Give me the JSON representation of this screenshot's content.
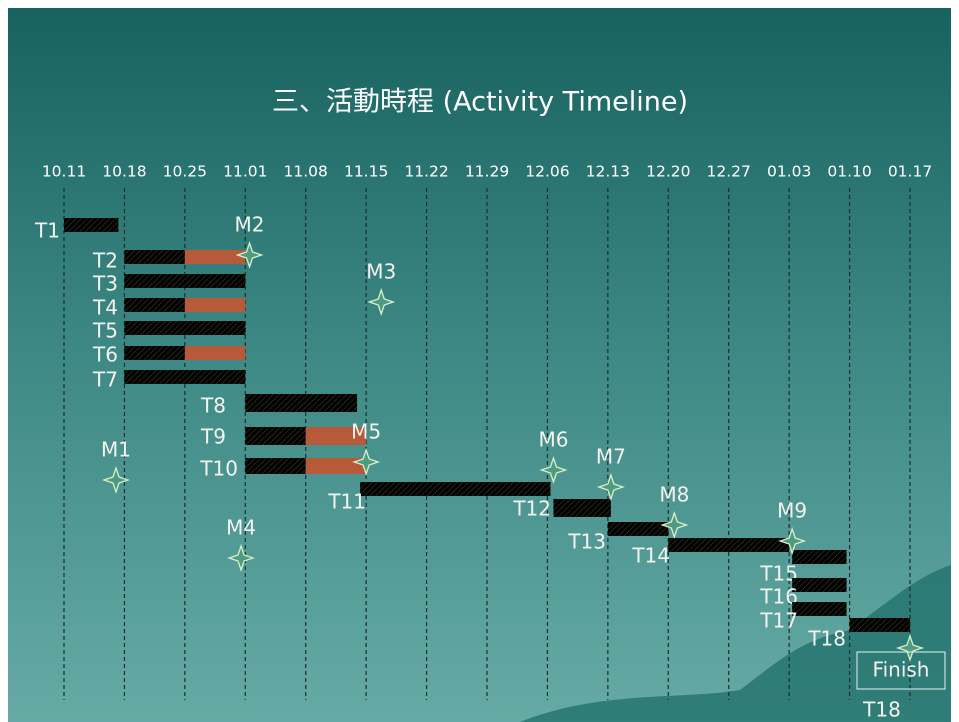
{
  "title": "三、活動時程 (Activity Timeline)",
  "timeline": {
    "dates": [
      "10.11",
      "10.18",
      "10.25",
      "11.01",
      "11.08",
      "11.15",
      "11.22",
      "11.29",
      "12.06",
      "12.13",
      "12.20",
      "12.27",
      "01.03",
      "01.10",
      "01.17"
    ],
    "colors": {
      "planned": "#c9c47c",
      "critical": "#b65a3a",
      "milestone": "#d8f0c8"
    },
    "tasks": [
      {
        "label": "T1",
        "segments": [
          {
            "start": 0,
            "end": 0.9,
            "color": "planned"
          }
        ]
      },
      {
        "label": "T2",
        "segments": [
          {
            "start": 1,
            "end": 2,
            "color": "planned"
          },
          {
            "start": 2,
            "end": 3,
            "color": "critical"
          }
        ]
      },
      {
        "label": "T3",
        "segments": [
          {
            "start": 1,
            "end": 3,
            "color": "planned"
          }
        ]
      },
      {
        "label": "T4",
        "segments": [
          {
            "start": 1,
            "end": 2,
            "color": "planned"
          },
          {
            "start": 2,
            "end": 3,
            "color": "critical"
          }
        ]
      },
      {
        "label": "T5",
        "segments": [
          {
            "start": 1,
            "end": 3,
            "color": "planned"
          }
        ]
      },
      {
        "label": "T6",
        "segments": [
          {
            "start": 1,
            "end": 2,
            "color": "planned"
          },
          {
            "start": 2,
            "end": 3,
            "color": "critical"
          }
        ]
      },
      {
        "label": "T7",
        "segments": [
          {
            "start": 1,
            "end": 3,
            "color": "planned"
          }
        ]
      },
      {
        "label": "T8",
        "segments": [
          {
            "start": 3,
            "end": 4.85,
            "color": "planned"
          }
        ]
      },
      {
        "label": "T9",
        "segments": [
          {
            "start": 3,
            "end": 4,
            "color": "planned"
          },
          {
            "start": 4,
            "end": 5,
            "color": "critical"
          }
        ]
      },
      {
        "label": "T10",
        "segments": [
          {
            "start": 3,
            "end": 4,
            "color": "planned"
          },
          {
            "start": 4,
            "end": 5,
            "color": "critical"
          }
        ]
      },
      {
        "label": "T11",
        "segments": [
          {
            "start": 4.9,
            "end": 8.05,
            "color": "planned"
          }
        ]
      },
      {
        "label": "T12",
        "segments": [
          {
            "start": 8.1,
            "end": 9.05,
            "color": "planned"
          }
        ]
      },
      {
        "label": "T13",
        "segments": [
          {
            "start": 9,
            "end": 10,
            "color": "planned"
          }
        ]
      },
      {
        "label": "T14",
        "segments": [
          {
            "start": 10,
            "end": 12,
            "color": "planned"
          }
        ]
      },
      {
        "label": "T15",
        "segments": [
          {
            "start": 12.05,
            "end": 12.95,
            "color": "planned"
          }
        ]
      },
      {
        "label": "T16",
        "segments": [
          {
            "start": 12.05,
            "end": 12.95,
            "color": "planned"
          }
        ]
      },
      {
        "label": "T17",
        "segments": [
          {
            "start": 12.05,
            "end": 12.95,
            "color": "planned"
          }
        ]
      },
      {
        "label": "T18",
        "segments": [
          {
            "start": 13,
            "end": 14,
            "color": "planned"
          }
        ]
      }
    ],
    "milestones": [
      {
        "label": "M1",
        "week": 0.86
      },
      {
        "label": "M2",
        "week": 3.07
      },
      {
        "label": "M3",
        "week": 5.25
      },
      {
        "label": "M4",
        "week": 2.93
      },
      {
        "label": "M5",
        "week": 5.0
      },
      {
        "label": "M6",
        "week": 8.1
      },
      {
        "label": "M7",
        "week": 9.05
      },
      {
        "label": "M8",
        "week": 10.1
      },
      {
        "label": "M9",
        "week": 12.05
      }
    ],
    "finish": {
      "label": "Finish",
      "week": 14,
      "task": "T18"
    }
  }
}
